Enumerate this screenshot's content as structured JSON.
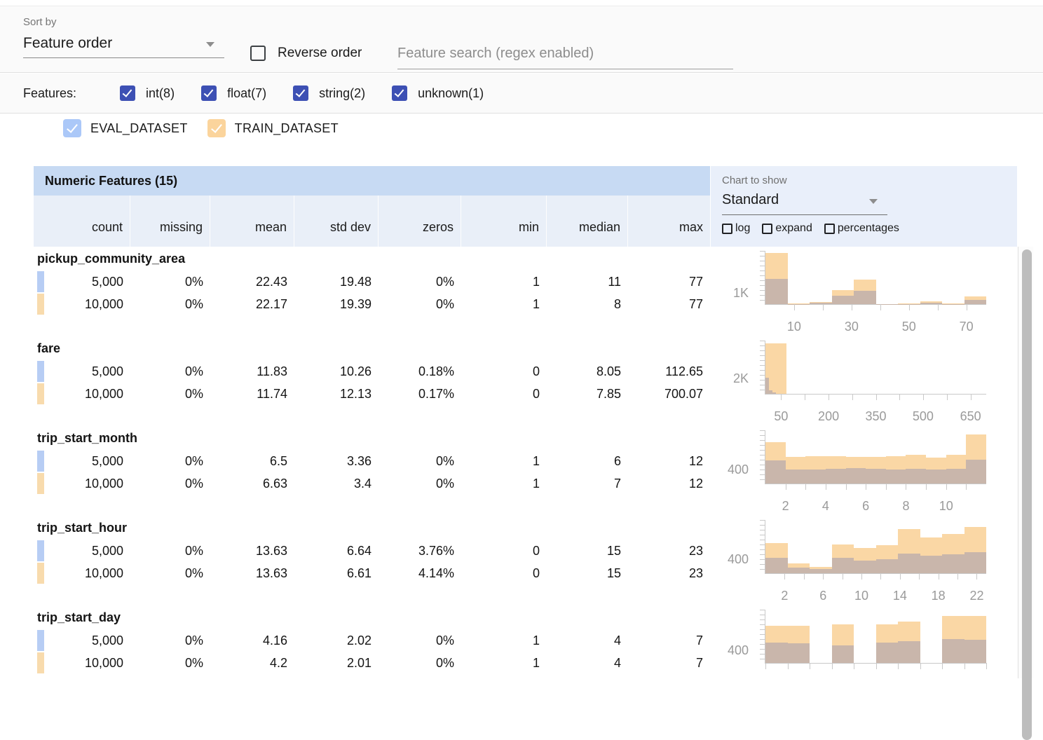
{
  "toolbar": {
    "sort_by_label": "Sort by",
    "sort_value": "Feature order",
    "reverse_label": "Reverse order",
    "search_placeholder": "Feature search (regex enabled)"
  },
  "features_filter": {
    "label": "Features:",
    "items": [
      {
        "label": "int(8)",
        "checked": true
      },
      {
        "label": "float(7)",
        "checked": true
      },
      {
        "label": "string(2)",
        "checked": true
      },
      {
        "label": "unknown(1)",
        "checked": true
      }
    ]
  },
  "datasets": [
    {
      "name": "EVAL_DATASET",
      "checked": true,
      "checkbox_color": "#abc8f8",
      "swatch_color": "#b7cdf4"
    },
    {
      "name": "TRAIN_DATASET",
      "checked": true,
      "checkbox_color": "#fbd49c",
      "swatch_color": "#f8dbad"
    }
  ],
  "table": {
    "title": "Numeric Features (15)",
    "columns": [
      "count",
      "missing",
      "mean",
      "std dev",
      "zeros",
      "min",
      "median",
      "max"
    ],
    "chart_controls": {
      "label": "Chart to show",
      "selected": "Standard",
      "toggles": [
        {
          "label": "log",
          "checked": false
        },
        {
          "label": "expand",
          "checked": false
        },
        {
          "label": "percentages",
          "checked": false
        }
      ]
    },
    "features": [
      {
        "name": "pickup_community_area",
        "rows": [
          {
            "dataset": "EVAL_DATASET",
            "values": [
              "5,000",
              "0%",
              "22.43",
              "19.48",
              "0%",
              "1",
              "11",
              "77"
            ]
          },
          {
            "dataset": "TRAIN_DATASET",
            "values": [
              "10,000",
              "0%",
              "22.17",
              "19.39",
              "0%",
              "1",
              "8",
              "77"
            ]
          }
        ]
      },
      {
        "name": "fare",
        "rows": [
          {
            "dataset": "EVAL_DATASET",
            "values": [
              "5,000",
              "0%",
              "11.83",
              "10.26",
              "0.18%",
              "0",
              "8.05",
              "112.65"
            ]
          },
          {
            "dataset": "TRAIN_DATASET",
            "values": [
              "10,000",
              "0%",
              "11.74",
              "12.13",
              "0.17%",
              "0",
              "7.85",
              "700.07"
            ]
          }
        ]
      },
      {
        "name": "trip_start_month",
        "rows": [
          {
            "dataset": "EVAL_DATASET",
            "values": [
              "5,000",
              "0%",
              "6.5",
              "3.36",
              "0%",
              "1",
              "6",
              "12"
            ]
          },
          {
            "dataset": "TRAIN_DATASET",
            "values": [
              "10,000",
              "0%",
              "6.63",
              "3.4",
              "0%",
              "1",
              "7",
              "12"
            ]
          }
        ]
      },
      {
        "name": "trip_start_hour",
        "rows": [
          {
            "dataset": "EVAL_DATASET",
            "values": [
              "5,000",
              "0%",
              "13.63",
              "6.64",
              "3.76%",
              "0",
              "15",
              "23"
            ]
          },
          {
            "dataset": "TRAIN_DATASET",
            "values": [
              "10,000",
              "0%",
              "13.63",
              "6.61",
              "4.14%",
              "0",
              "15",
              "23"
            ]
          }
        ]
      },
      {
        "name": "trip_start_day",
        "rows": [
          {
            "dataset": "EVAL_DATASET",
            "values": [
              "5,000",
              "0%",
              "4.16",
              "2.02",
              "0%",
              "1",
              "4",
              "7"
            ]
          },
          {
            "dataset": "TRAIN_DATASET",
            "values": [
              "10,000",
              "0%",
              "4.2",
              "2.01",
              "0%",
              "1",
              "4",
              "7"
            ]
          }
        ]
      }
    ]
  },
  "chart_data": [
    {
      "type": "histogram",
      "title": "pickup_community_area",
      "ylabel": "1K",
      "ylabel_value": 1000,
      "ymax": 4800,
      "xrange": [
        0,
        77
      ],
      "legend": [
        "TRAIN_DATASET",
        "EVAL_DATASET"
      ],
      "bars": [
        {
          "x": 0.0,
          "w": 0.1,
          "train": 4600,
          "eval": 2300
        },
        {
          "x": 0.1,
          "w": 0.1,
          "train": 50,
          "eval": 30
        },
        {
          "x": 0.2,
          "w": 0.1,
          "train": 200,
          "eval": 100
        },
        {
          "x": 0.3,
          "w": 0.1,
          "train": 1250,
          "eval": 750
        },
        {
          "x": 0.4,
          "w": 0.1,
          "train": 2200,
          "eval": 1200
        },
        {
          "x": 0.5,
          "w": 0.1,
          "train": 30,
          "eval": 20
        },
        {
          "x": 0.6,
          "w": 0.1,
          "train": 40,
          "eval": 25
        },
        {
          "x": 0.7,
          "w": 0.1,
          "train": 250,
          "eval": 120
        },
        {
          "x": 0.8,
          "w": 0.1,
          "train": 40,
          "eval": 25
        },
        {
          "x": 0.9,
          "w": 0.1,
          "train": 700,
          "eval": 350
        }
      ],
      "xticks": [
        {
          "f": 0.13,
          "label": "10"
        },
        {
          "f": 0.26,
          "label": ""
        },
        {
          "f": 0.39,
          "label": "30"
        },
        {
          "f": 0.52,
          "label": ""
        },
        {
          "f": 0.65,
          "label": "50"
        },
        {
          "f": 0.78,
          "label": ""
        },
        {
          "f": 0.91,
          "label": "70"
        }
      ]
    },
    {
      "type": "histogram",
      "title": "fare",
      "ylabel": "2K",
      "ylabel_value": 2000,
      "ymax": 7000,
      "xrange": [
        0,
        700
      ],
      "legend": [
        "TRAIN_DATASET",
        "EVAL_DATASET"
      ],
      "bars": [
        {
          "x": 0.0,
          "w": 0.094,
          "train": 6600,
          "eval": 0
        },
        {
          "x": 0.0,
          "w": 0.016,
          "train": 0,
          "eval": 2100
        },
        {
          "x": 0.016,
          "w": 0.016,
          "train": 0,
          "eval": 500
        },
        {
          "x": 0.032,
          "w": 0.016,
          "train": 0,
          "eval": 200
        }
      ],
      "xticks": [
        {
          "f": 0.071,
          "label": "50"
        },
        {
          "f": 0.179,
          "label": ""
        },
        {
          "f": 0.286,
          "label": "200"
        },
        {
          "f": 0.393,
          "label": ""
        },
        {
          "f": 0.5,
          "label": "350"
        },
        {
          "f": 0.607,
          "label": ""
        },
        {
          "f": 0.714,
          "label": "500"
        },
        {
          "f": 0.821,
          "label": ""
        },
        {
          "f": 0.929,
          "label": "650"
        }
      ]
    },
    {
      "type": "histogram",
      "title": "trip_start_month",
      "ylabel": "400",
      "ylabel_value": 400,
      "ymax": 1500,
      "xrange": [
        1,
        12
      ],
      "legend": [
        "TRAIN_DATASET",
        "EVAL_DATASET"
      ],
      "bars": [
        {
          "x": 0.0,
          "w": 0.0909,
          "train": 1160,
          "eval": 660
        },
        {
          "x": 0.0909,
          "w": 0.0909,
          "train": 750,
          "eval": 400
        },
        {
          "x": 0.1818,
          "w": 0.0909,
          "train": 770,
          "eval": 400
        },
        {
          "x": 0.2727,
          "w": 0.0909,
          "train": 770,
          "eval": 420
        },
        {
          "x": 0.3636,
          "w": 0.0909,
          "train": 750,
          "eval": 430
        },
        {
          "x": 0.4545,
          "w": 0.0909,
          "train": 760,
          "eval": 420
        },
        {
          "x": 0.5455,
          "w": 0.0909,
          "train": 770,
          "eval": 400
        },
        {
          "x": 0.6364,
          "w": 0.0909,
          "train": 800,
          "eval": 410
        },
        {
          "x": 0.7273,
          "w": 0.0909,
          "train": 740,
          "eval": 400
        },
        {
          "x": 0.8182,
          "w": 0.0909,
          "train": 800,
          "eval": 420
        },
        {
          "x": 0.9091,
          "w": 0.0909,
          "train": 1380,
          "eval": 680
        }
      ],
      "xticks": [
        {
          "f": 0.0909,
          "label": "2"
        },
        {
          "f": 0.1818,
          "label": ""
        },
        {
          "f": 0.2727,
          "label": "4"
        },
        {
          "f": 0.3636,
          "label": ""
        },
        {
          "f": 0.4545,
          "label": "6"
        },
        {
          "f": 0.5455,
          "label": ""
        },
        {
          "f": 0.6364,
          "label": "8"
        },
        {
          "f": 0.7273,
          "label": ""
        },
        {
          "f": 0.8182,
          "label": "10"
        },
        {
          "f": 0.9091,
          "label": ""
        }
      ]
    },
    {
      "type": "histogram",
      "title": "trip_start_hour",
      "ylabel": "400",
      "ylabel_value": 400,
      "ymax": 1500,
      "xrange": [
        0,
        23
      ],
      "legend": [
        "TRAIN_DATASET",
        "EVAL_DATASET"
      ],
      "bars": [
        {
          "x": 0.0,
          "w": 0.1,
          "train": 840,
          "eval": 440
        },
        {
          "x": 0.1,
          "w": 0.1,
          "train": 280,
          "eval": 160
        },
        {
          "x": 0.2,
          "w": 0.1,
          "train": 180,
          "eval": 120
        },
        {
          "x": 0.3,
          "w": 0.1,
          "train": 800,
          "eval": 440
        },
        {
          "x": 0.4,
          "w": 0.1,
          "train": 720,
          "eval": 360
        },
        {
          "x": 0.5,
          "w": 0.1,
          "train": 780,
          "eval": 400
        },
        {
          "x": 0.6,
          "w": 0.1,
          "train": 1240,
          "eval": 560
        },
        {
          "x": 0.7,
          "w": 0.1,
          "train": 1000,
          "eval": 500
        },
        {
          "x": 0.8,
          "w": 0.1,
          "train": 1100,
          "eval": 540
        },
        {
          "x": 0.9,
          "w": 0.1,
          "train": 1300,
          "eval": 600
        }
      ],
      "xticks": [
        {
          "f": 0.087,
          "label": "2"
        },
        {
          "f": 0.174,
          "label": ""
        },
        {
          "f": 0.261,
          "label": "6"
        },
        {
          "f": 0.348,
          "label": ""
        },
        {
          "f": 0.435,
          "label": "10"
        },
        {
          "f": 0.522,
          "label": ""
        },
        {
          "f": 0.609,
          "label": "14"
        },
        {
          "f": 0.696,
          "label": ""
        },
        {
          "f": 0.783,
          "label": "18"
        },
        {
          "f": 0.87,
          "label": ""
        },
        {
          "f": 0.957,
          "label": "22"
        }
      ]
    },
    {
      "type": "histogram",
      "title": "trip_start_day",
      "ylabel": "400",
      "ylabel_value": 400,
      "ymax": 1700,
      "xrange": [
        1,
        7
      ],
      "legend": [
        "TRAIN_DATASET",
        "EVAL_DATASET"
      ],
      "bars": [
        {
          "x": 0.0,
          "w": 0.1,
          "train": 1180,
          "eval": 640
        },
        {
          "x": 0.1,
          "w": 0.1,
          "train": 1180,
          "eval": 620
        },
        {
          "x": 0.3,
          "w": 0.1,
          "train": 1220,
          "eval": 560
        },
        {
          "x": 0.5,
          "w": 0.1,
          "train": 1240,
          "eval": 640
        },
        {
          "x": 0.6,
          "w": 0.1,
          "train": 1330,
          "eval": 690
        },
        {
          "x": 0.8,
          "w": 0.1,
          "train": 1510,
          "eval": 760
        },
        {
          "x": 0.9,
          "w": 0.1,
          "train": 1490,
          "eval": 730
        }
      ],
      "xticks": [
        {
          "f": 0.0,
          "label": ""
        },
        {
          "f": 0.1,
          "label": ""
        },
        {
          "f": 0.2,
          "label": ""
        },
        {
          "f": 0.3,
          "label": ""
        },
        {
          "f": 0.4,
          "label": ""
        },
        {
          "f": 0.5,
          "label": ""
        },
        {
          "f": 0.6,
          "label": ""
        },
        {
          "f": 0.7,
          "label": ""
        },
        {
          "f": 0.8,
          "label": ""
        },
        {
          "f": 0.9,
          "label": ""
        },
        {
          "f": 1.0,
          "label": ""
        }
      ]
    }
  ],
  "colors": {
    "accent_indigo": "#3d50b4",
    "table_title_bg": "#c7daf3",
    "column_header_bg": "#e9eff8",
    "chart_panel_bg": "#e9effa",
    "train_bar": "#fad7a5",
    "overlap_bar": "#c9b6ab",
    "eval_swatch": "#b7cdf4",
    "train_swatch": "#f8dbad"
  }
}
